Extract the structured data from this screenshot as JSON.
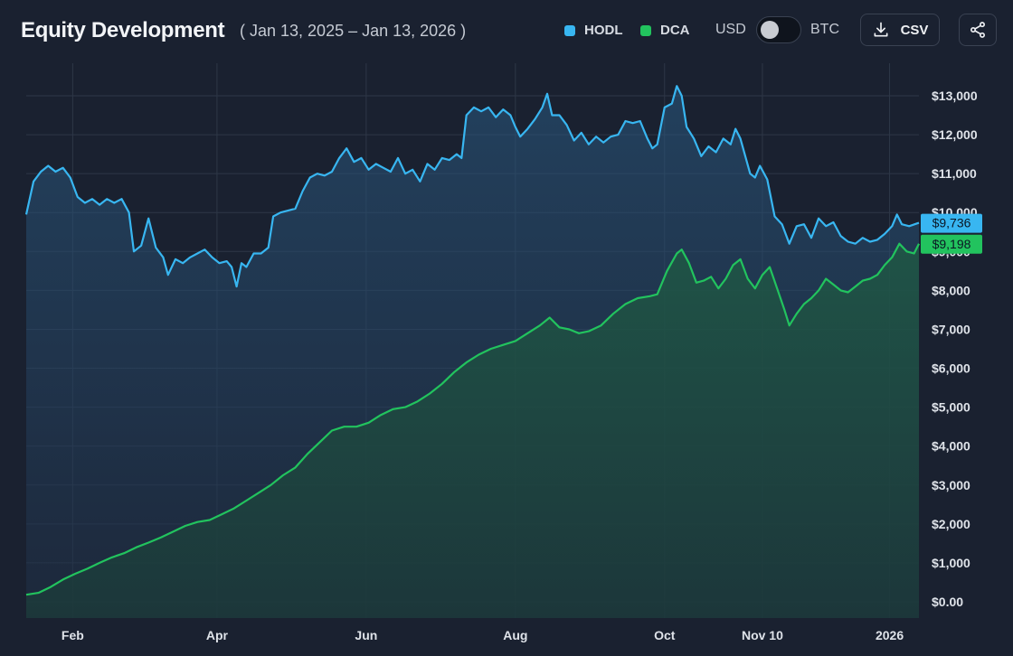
{
  "header": {
    "title": "Equity Development",
    "date_range": "( Jan 13, 2025 – Jan 13, 2026 )",
    "legend": [
      {
        "label": "HODL",
        "color": "#38b6f1"
      },
      {
        "label": "DCA",
        "color": "#22c35e"
      }
    ],
    "toggle": {
      "left_label": "USD",
      "right_label": "BTC",
      "selected": "USD"
    },
    "csv_label": "CSV",
    "download_icon": "download-icon",
    "share_icon": "share-icon"
  },
  "colors": {
    "background": "#1a2130",
    "grid": "#2e3747",
    "hodl": "#38b6f1",
    "dca": "#22c35e"
  },
  "chart_data": {
    "type": "area",
    "title": "Equity Development",
    "xlabel": "",
    "ylabel": "USD",
    "x_range_days": [
      0,
      365
    ],
    "ylim": [
      0,
      13300
    ],
    "y_ticks": [
      {
        "value": 0,
        "label": "$0.00"
      },
      {
        "value": 1000,
        "label": "$1,000"
      },
      {
        "value": 2000,
        "label": "$2,000"
      },
      {
        "value": 3000,
        "label": "$3,000"
      },
      {
        "value": 4000,
        "label": "$4,000"
      },
      {
        "value": 5000,
        "label": "$5,000"
      },
      {
        "value": 6000,
        "label": "$6,000"
      },
      {
        "value": 7000,
        "label": "$7,000"
      },
      {
        "value": 8000,
        "label": "$8,000"
      },
      {
        "value": 9000,
        "label": "$9,000"
      },
      {
        "value": 10000,
        "label": "$10,000"
      },
      {
        "value": 11000,
        "label": "$11,000"
      },
      {
        "value": 12000,
        "label": "$12,000"
      },
      {
        "value": 13000,
        "label": "$13,000"
      }
    ],
    "x_ticks": [
      {
        "day": 19,
        "label": "Feb"
      },
      {
        "day": 78,
        "label": "Apr"
      },
      {
        "day": 139,
        "label": "Jun"
      },
      {
        "day": 200,
        "label": "Aug"
      },
      {
        "day": 261,
        "label": "Oct"
      },
      {
        "day": 301,
        "label": "Nov 10"
      },
      {
        "day": 353,
        "label": "2026"
      }
    ],
    "series": [
      {
        "name": "HODL",
        "color": "#38b6f1",
        "last_value_label": "$9,736",
        "points": [
          [
            0,
            9950
          ],
          [
            3,
            10800
          ],
          [
            6,
            11050
          ],
          [
            9,
            11200
          ],
          [
            12,
            11050
          ],
          [
            15,
            11150
          ],
          [
            18,
            10900
          ],
          [
            21,
            10400
          ],
          [
            24,
            10250
          ],
          [
            27,
            10350
          ],
          [
            30,
            10200
          ],
          [
            33,
            10350
          ],
          [
            36,
            10250
          ],
          [
            39,
            10350
          ],
          [
            42,
            10000
          ],
          [
            44,
            9000
          ],
          [
            47,
            9150
          ],
          [
            50,
            9850
          ],
          [
            53,
            9100
          ],
          [
            56,
            8850
          ],
          [
            58,
            8400
          ],
          [
            61,
            8800
          ],
          [
            64,
            8700
          ],
          [
            67,
            8850
          ],
          [
            70,
            8950
          ],
          [
            73,
            9050
          ],
          [
            76,
            8850
          ],
          [
            79,
            8700
          ],
          [
            82,
            8750
          ],
          [
            84,
            8600
          ],
          [
            86,
            8100
          ],
          [
            88,
            8700
          ],
          [
            90,
            8600
          ],
          [
            93,
            8950
          ],
          [
            96,
            8950
          ],
          [
            99,
            9100
          ],
          [
            101,
            9900
          ],
          [
            104,
            10000
          ],
          [
            107,
            10050
          ],
          [
            110,
            10100
          ],
          [
            113,
            10550
          ],
          [
            116,
            10900
          ],
          [
            119,
            11000
          ],
          [
            122,
            10950
          ],
          [
            125,
            11050
          ],
          [
            128,
            11400
          ],
          [
            131,
            11650
          ],
          [
            134,
            11300
          ],
          [
            137,
            11400
          ],
          [
            140,
            11100
          ],
          [
            143,
            11250
          ],
          [
            146,
            11150
          ],
          [
            149,
            11050
          ],
          [
            152,
            11400
          ],
          [
            155,
            11000
          ],
          [
            158,
            11100
          ],
          [
            161,
            10800
          ],
          [
            164,
            11250
          ],
          [
            167,
            11100
          ],
          [
            170,
            11400
          ],
          [
            173,
            11350
          ],
          [
            176,
            11500
          ],
          [
            178,
            11400
          ],
          [
            180,
            12500
          ],
          [
            183,
            12700
          ],
          [
            186,
            12600
          ],
          [
            189,
            12700
          ],
          [
            192,
            12450
          ],
          [
            195,
            12650
          ],
          [
            198,
            12500
          ],
          [
            200,
            12200
          ],
          [
            202,
            11950
          ],
          [
            205,
            12150
          ],
          [
            208,
            12400
          ],
          [
            211,
            12700
          ],
          [
            213,
            13050
          ],
          [
            215,
            12500
          ],
          [
            218,
            12500
          ],
          [
            221,
            12250
          ],
          [
            224,
            11850
          ],
          [
            227,
            12050
          ],
          [
            230,
            11750
          ],
          [
            233,
            11950
          ],
          [
            236,
            11800
          ],
          [
            239,
            11950
          ],
          [
            242,
            12000
          ],
          [
            245,
            12350
          ],
          [
            248,
            12300
          ],
          [
            251,
            12350
          ],
          [
            254,
            11900
          ],
          [
            256,
            11650
          ],
          [
            258,
            11750
          ],
          [
            261,
            12700
          ],
          [
            264,
            12800
          ],
          [
            266,
            13250
          ],
          [
            268,
            13000
          ],
          [
            270,
            12200
          ],
          [
            273,
            11900
          ],
          [
            276,
            11450
          ],
          [
            279,
            11700
          ],
          [
            282,
            11550
          ],
          [
            285,
            11900
          ],
          [
            288,
            11750
          ],
          [
            290,
            12150
          ],
          [
            292,
            11900
          ],
          [
            294,
            11450
          ],
          [
            296,
            11000
          ],
          [
            298,
            10900
          ],
          [
            300,
            11200
          ],
          [
            303,
            10850
          ],
          [
            306,
            9900
          ],
          [
            309,
            9700
          ],
          [
            312,
            9200
          ],
          [
            315,
            9650
          ],
          [
            318,
            9700
          ],
          [
            321,
            9350
          ],
          [
            324,
            9850
          ],
          [
            327,
            9650
          ],
          [
            330,
            9750
          ],
          [
            333,
            9400
          ],
          [
            336,
            9250
          ],
          [
            339,
            9200
          ],
          [
            342,
            9350
          ],
          [
            345,
            9250
          ],
          [
            348,
            9300
          ],
          [
            351,
            9450
          ],
          [
            354,
            9650
          ],
          [
            356,
            9950
          ],
          [
            358,
            9700
          ],
          [
            361,
            9650
          ],
          [
            365,
            9736
          ]
        ]
      },
      {
        "name": "DCA",
        "color": "#22c35e",
        "last_value_label": "$9,198",
        "points": [
          [
            0,
            180
          ],
          [
            5,
            230
          ],
          [
            10,
            380
          ],
          [
            15,
            570
          ],
          [
            20,
            720
          ],
          [
            25,
            850
          ],
          [
            30,
            1000
          ],
          [
            35,
            1140
          ],
          [
            40,
            1250
          ],
          [
            45,
            1400
          ],
          [
            50,
            1520
          ],
          [
            55,
            1650
          ],
          [
            60,
            1800
          ],
          [
            65,
            1950
          ],
          [
            70,
            2050
          ],
          [
            75,
            2100
          ],
          [
            80,
            2250
          ],
          [
            85,
            2400
          ],
          [
            90,
            2600
          ],
          [
            95,
            2800
          ],
          [
            100,
            3000
          ],
          [
            105,
            3250
          ],
          [
            110,
            3450
          ],
          [
            115,
            3800
          ],
          [
            120,
            4100
          ],
          [
            125,
            4400
          ],
          [
            130,
            4500
          ],
          [
            135,
            4500
          ],
          [
            140,
            4600
          ],
          [
            145,
            4800
          ],
          [
            150,
            4950
          ],
          [
            155,
            5000
          ],
          [
            160,
            5150
          ],
          [
            165,
            5350
          ],
          [
            170,
            5600
          ],
          [
            175,
            5900
          ],
          [
            180,
            6150
          ],
          [
            185,
            6350
          ],
          [
            190,
            6500
          ],
          [
            195,
            6600
          ],
          [
            200,
            6700
          ],
          [
            205,
            6900
          ],
          [
            210,
            7100
          ],
          [
            214,
            7300
          ],
          [
            218,
            7050
          ],
          [
            222,
            7000
          ],
          [
            226,
            6900
          ],
          [
            230,
            6950
          ],
          [
            235,
            7100
          ],
          [
            240,
            7400
          ],
          [
            245,
            7650
          ],
          [
            250,
            7800
          ],
          [
            255,
            7850
          ],
          [
            258,
            7900
          ],
          [
            262,
            8500
          ],
          [
            266,
            8950
          ],
          [
            268,
            9050
          ],
          [
            271,
            8700
          ],
          [
            274,
            8200
          ],
          [
            277,
            8250
          ],
          [
            280,
            8350
          ],
          [
            283,
            8050
          ],
          [
            286,
            8300
          ],
          [
            289,
            8650
          ],
          [
            292,
            8800
          ],
          [
            295,
            8300
          ],
          [
            298,
            8050
          ],
          [
            301,
            8400
          ],
          [
            304,
            8600
          ],
          [
            307,
            8050
          ],
          [
            310,
            7500
          ],
          [
            312,
            7100
          ],
          [
            315,
            7400
          ],
          [
            318,
            7650
          ],
          [
            321,
            7800
          ],
          [
            324,
            8000
          ],
          [
            327,
            8300
          ],
          [
            330,
            8150
          ],
          [
            333,
            8000
          ],
          [
            336,
            7950
          ],
          [
            339,
            8100
          ],
          [
            342,
            8250
          ],
          [
            345,
            8300
          ],
          [
            348,
            8400
          ],
          [
            351,
            8650
          ],
          [
            354,
            8850
          ],
          [
            357,
            9200
          ],
          [
            360,
            9000
          ],
          [
            363,
            8950
          ],
          [
            365,
            9198
          ]
        ]
      }
    ]
  }
}
